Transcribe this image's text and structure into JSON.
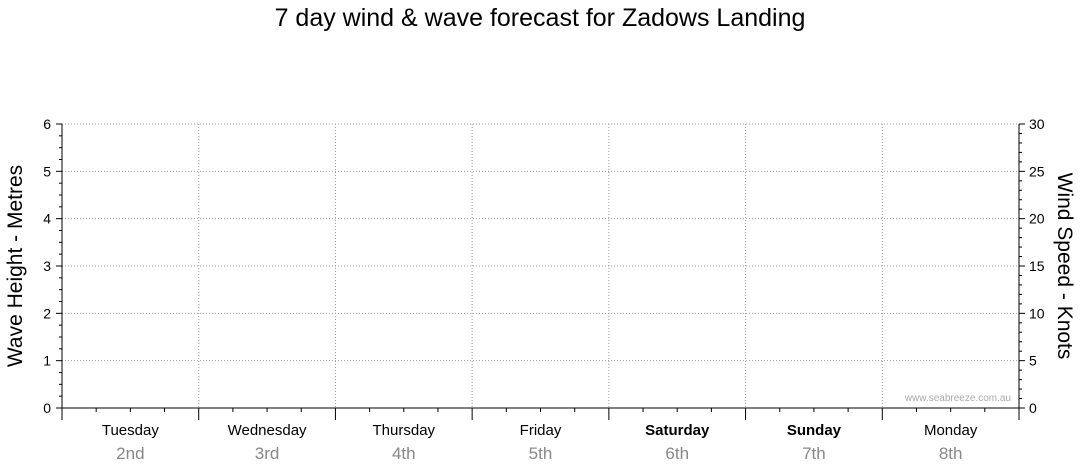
{
  "chart_data": {
    "type": "line",
    "title": "7 day wind & wave forecast for Zadows Landing",
    "ylabel_left": "Wave Height - Metres",
    "ylabel_right": "Wind Speed - Knots",
    "ylim_left": [
      0,
      6
    ],
    "ylim_right": [
      0,
      30
    ],
    "yticks_left": [
      0,
      1,
      2,
      3,
      4,
      5,
      6
    ],
    "yticks_right": [
      0,
      5,
      10,
      15,
      20,
      25,
      30
    ],
    "days": [
      {
        "name": "Tuesday",
        "date": "2nd",
        "weekend": false
      },
      {
        "name": "Wednesday",
        "date": "3rd",
        "weekend": false
      },
      {
        "name": "Thursday",
        "date": "4th",
        "weekend": false
      },
      {
        "name": "Friday",
        "date": "5th",
        "weekend": false
      },
      {
        "name": "Saturday",
        "date": "6th",
        "weekend": true
      },
      {
        "name": "Sunday",
        "date": "7th",
        "weekend": true
      },
      {
        "name": "Monday",
        "date": "8th",
        "weekend": false
      }
    ],
    "series": [],
    "grid": true,
    "watermark": "www.seabreeze.com.au"
  },
  "colors": {
    "axis": "#000000",
    "grid": "#999999",
    "date_label": "#888888",
    "watermark": "#aaaaaa"
  }
}
